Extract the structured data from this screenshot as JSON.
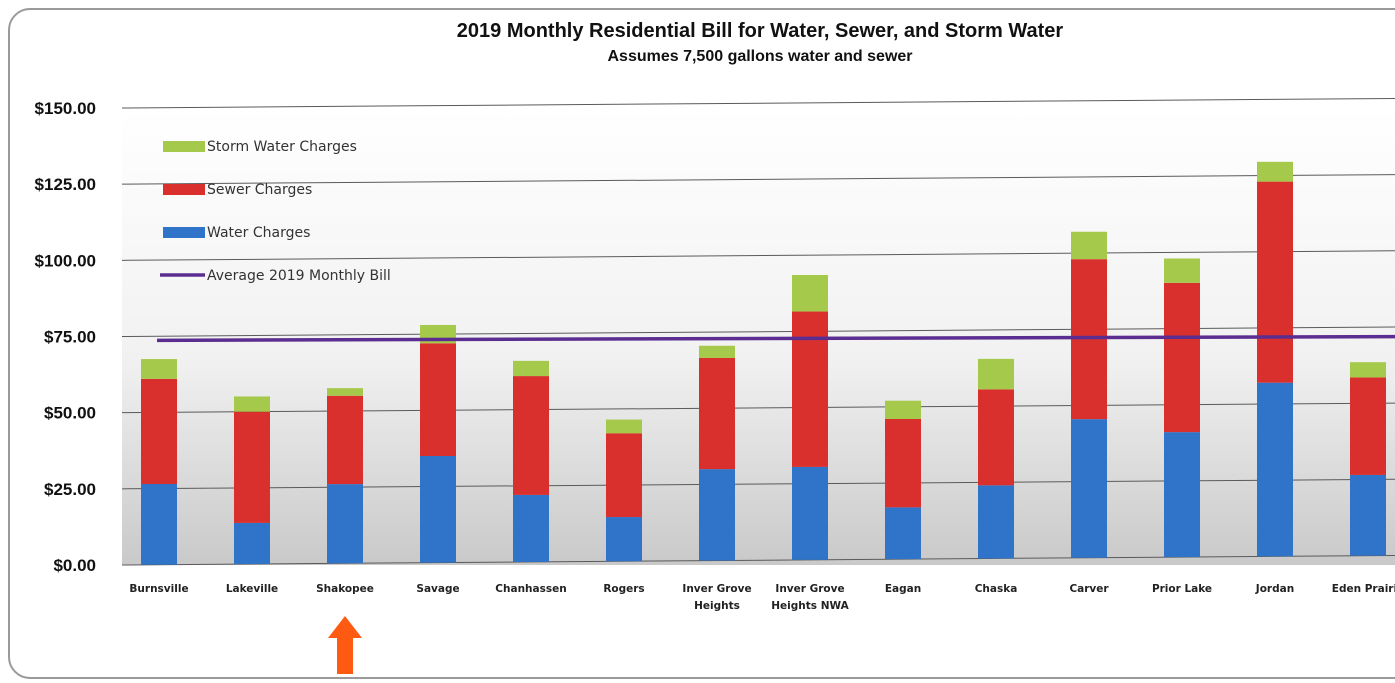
{
  "chart_data": {
    "type": "bar",
    "stacked": true,
    "title": "2019 Monthly Residential Bill for Water, Sewer, and Storm Water",
    "subtitle": "Assumes 7,500 gallons water and sewer",
    "categories": [
      [
        "Burnsville"
      ],
      [
        "Lakeville"
      ],
      [
        "Shakopee"
      ],
      [
        "Savage"
      ],
      [
        "Chanhassen"
      ],
      [
        "Rogers"
      ],
      [
        "Inver Grove",
        "Heights"
      ],
      [
        "Inver Grove",
        "Heights NWA"
      ],
      [
        "Eagan"
      ],
      [
        "Chaska"
      ],
      [
        "Carver"
      ],
      [
        "Prior Lake"
      ],
      [
        "Jordan"
      ],
      [
        "Eden Prairie"
      ]
    ],
    "series": [
      {
        "name": "Water Charges",
        "color": "#2f74c8",
        "values": [
          26.5,
          13.5,
          26,
          35,
          22,
          14.5,
          30,
          30.5,
          17,
          24,
          45.5,
          41,
          57,
          26.5
        ]
      },
      {
        "name": "Sewer Charges",
        "color": "#d9302e",
        "values": [
          34.5,
          36.5,
          29,
          37,
          39,
          27.5,
          36.5,
          51,
          29,
          31.5,
          52.5,
          49,
          66,
          32
        ]
      },
      {
        "name": "Storm Water Charges",
        "color": "#a5c94a",
        "values": [
          6.5,
          5,
          2.5,
          6,
          5,
          4.5,
          4,
          12,
          6,
          10,
          9,
          8,
          6.5,
          5
        ]
      }
    ],
    "average_line": {
      "name": "Average 2019 Monthly Bill",
      "value": 74,
      "color": "#5b2d91"
    },
    "yticks": [
      "$0.00",
      "$25.00",
      "$50.00",
      "$75.00",
      "$100.00",
      "$125.00",
      "$150.00"
    ],
    "ylim": [
      0,
      150
    ],
    "grid": true,
    "legend_position": "top-left",
    "legend_order": [
      "Storm Water Charges",
      "Sewer Charges",
      "Water Charges",
      "Average 2019 Monthly Bill"
    ],
    "highlight_arrow": {
      "category_index": 2,
      "color": "#ff5a12"
    }
  }
}
